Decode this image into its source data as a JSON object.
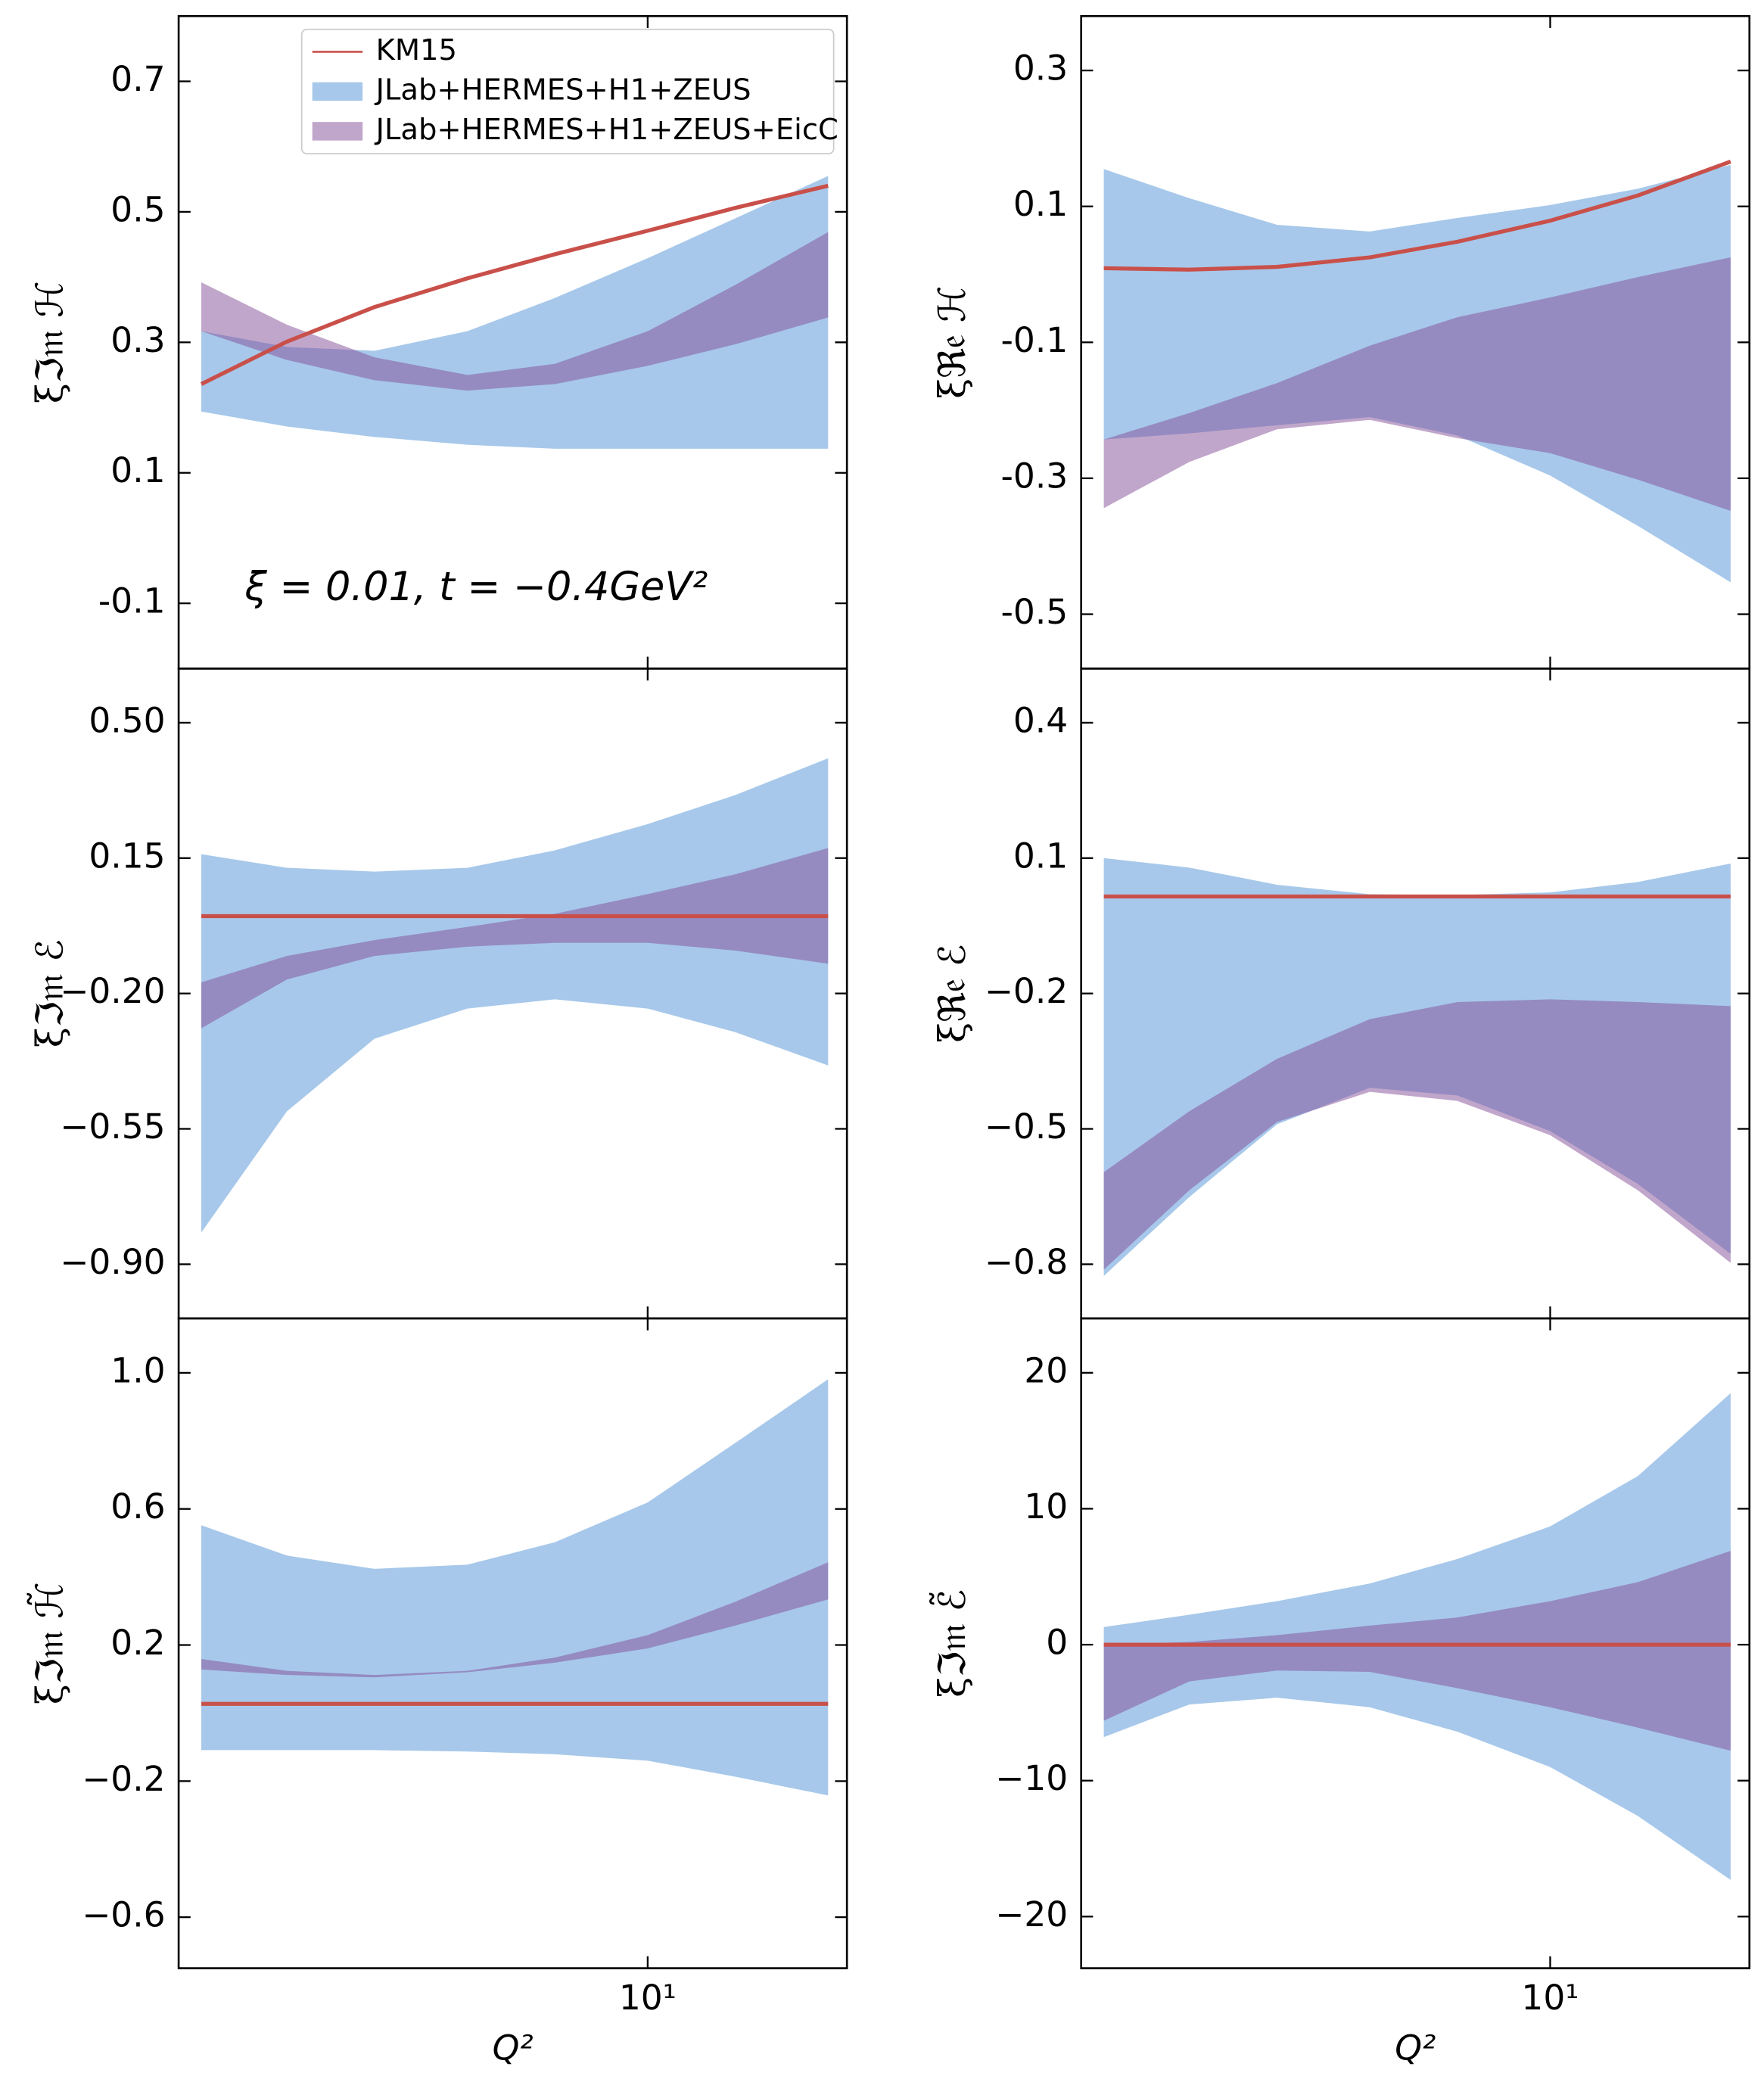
{
  "chart_data": [
    {
      "type": "band",
      "ylabel": "ξℑ𝔪 ℋ",
      "xlim": [
        1.65,
        21.5
      ],
      "xticks": [
        10
      ],
      "show_xtick_labels": false,
      "log_x": true,
      "ylim": [
        -0.2,
        0.8
      ],
      "yticks": [
        -0.1,
        0.1,
        0.3,
        0.5,
        0.7
      ],
      "legend": "upper right",
      "annotation": "ξ = 0.01, t = −0.4GeV²",
      "x": [
        1.8,
        2.5,
        3.5,
        5,
        7,
        10,
        14,
        20
      ],
      "series": [
        {
          "name": "KM15",
          "kind": "line",
          "color": "#c9504a",
          "values": [
            0.236,
            0.301,
            0.354,
            0.398,
            0.435,
            0.471,
            0.506,
            0.54
          ]
        },
        {
          "name": "JLab+HERMES+H1+ZEUS",
          "kind": "band",
          "color": "#a7c8ea",
          "upper": [
            0.317,
            0.293,
            0.287,
            0.317,
            0.368,
            0.429,
            0.49,
            0.555
          ],
          "lower": [
            0.194,
            0.171,
            0.155,
            0.143,
            0.137,
            0.137,
            0.137,
            0.137
          ]
        },
        {
          "name": "JLab+HERMES+H1+ZEUS+EicC",
          "kind": "band",
          "color": "#834e98",
          "opacity": 0.5,
          "upper": [
            0.392,
            0.327,
            0.277,
            0.25,
            0.267,
            0.317,
            0.388,
            0.469
          ],
          "lower": [
            0.317,
            0.273,
            0.242,
            0.226,
            0.236,
            0.264,
            0.297,
            0.338
          ]
        }
      ]
    },
    {
      "type": "band",
      "ylabel": "ξℜ𝔢 ℋ",
      "xlim": [
        1.65,
        21.5
      ],
      "xticks": [
        10
      ],
      "show_xtick_labels": false,
      "log_x": true,
      "ylim": [
        -0.58,
        0.38
      ],
      "yticks": [
        -0.5,
        -0.3,
        -0.1,
        0.1,
        0.3
      ],
      "x": [
        1.8,
        2.5,
        3.5,
        5,
        7,
        10,
        14,
        20
      ],
      "series": [
        {
          "kind": "line",
          "color": "#c9504a",
          "values": [
            0.009,
            0.007,
            0.011,
            0.025,
            0.048,
            0.079,
            0.116,
            0.166
          ]
        },
        {
          "kind": "band",
          "color": "#a7c8ea",
          "upper": [
            0.155,
            0.112,
            0.073,
            0.063,
            0.083,
            0.102,
            0.126,
            0.161
          ],
          "lower": [
            -0.243,
            -0.234,
            -0.222,
            -0.21,
            -0.237,
            -0.296,
            -0.37,
            -0.453
          ]
        },
        {
          "kind": "band",
          "color": "#834e98",
          "opacity": 0.5,
          "upper": [
            -0.243,
            -0.204,
            -0.16,
            -0.105,
            -0.063,
            -0.034,
            -0.004,
            0.025
          ],
          "lower": [
            -0.344,
            -0.276,
            -0.228,
            -0.214,
            -0.241,
            -0.263,
            -0.302,
            -0.348
          ]
        }
      ]
    },
    {
      "type": "band",
      "ylabel": "ξℑ𝔪 ℰ",
      "xlim": [
        1.65,
        21.5
      ],
      "xticks": [
        10
      ],
      "show_xtick_labels": false,
      "log_x": true,
      "ylim": [
        -1.04,
        0.64
      ],
      "yticks": [
        {
          "value": -0.9,
          "label": "−0.90"
        },
        {
          "value": -0.55,
          "label": "−0.55"
        },
        {
          "value": -0.2,
          "label": "−0.20"
        },
        0.15,
        {
          "value": 0.5,
          "label": "0.50"
        }
      ],
      "x": [
        1.8,
        2.5,
        3.5,
        5,
        7,
        10,
        14,
        20
      ],
      "series": [
        {
          "kind": "line",
          "color": "#c9504a",
          "values": [
            0,
            0,
            0,
            0,
            0,
            0,
            0,
            0
          ]
        },
        {
          "kind": "band",
          "color": "#a7c8ea",
          "upper": [
            0.16,
            0.125,
            0.115,
            0.125,
            0.17,
            0.238,
            0.313,
            0.408
          ],
          "lower": [
            -0.818,
            -0.505,
            -0.317,
            -0.239,
            -0.215,
            -0.239,
            -0.3,
            -0.386
          ]
        },
        {
          "kind": "band",
          "color": "#834e98",
          "opacity": 0.5,
          "upper": [
            -0.171,
            -0.103,
            -0.062,
            -0.028,
            0.006,
            0.057,
            0.108,
            0.176
          ],
          "lower": [
            -0.29,
            -0.164,
            -0.103,
            -0.079,
            -0.069,
            -0.069,
            -0.089,
            -0.123
          ]
        }
      ]
    },
    {
      "type": "band",
      "ylabel": "ξℜ𝔢 ℰ",
      "xlim": [
        1.65,
        21.5
      ],
      "xticks": [
        10
      ],
      "show_xtick_labels": false,
      "log_x": true,
      "ylim": [
        -0.92,
        0.52
      ],
      "yticks": [
        {
          "value": -0.8,
          "label": "−0.8"
        },
        {
          "value": -0.5,
          "label": "−0.5"
        },
        {
          "value": -0.2,
          "label": "−0.2"
        },
        0.1,
        0.4
      ],
      "x": [
        1.8,
        2.5,
        3.5,
        5,
        7,
        10,
        14,
        20
      ],
      "series": [
        {
          "kind": "line",
          "color": "#c9504a",
          "values": [
            0.015,
            0.015,
            0.015,
            0.015,
            0.015,
            0.015,
            0.015,
            0.015
          ]
        },
        {
          "kind": "band",
          "color": "#a7c8ea",
          "upper": [
            0.1,
            0.079,
            0.041,
            0.02,
            0.018,
            0.024,
            0.047,
            0.088
          ],
          "lower": [
            -0.826,
            -0.651,
            -0.49,
            -0.409,
            -0.426,
            -0.505,
            -0.622,
            -0.777
          ]
        },
        {
          "kind": "band",
          "color": "#834e98",
          "opacity": 0.5,
          "upper": [
            -0.596,
            -0.461,
            -0.345,
            -0.257,
            -0.219,
            -0.213,
            -0.219,
            -0.228
          ],
          "lower": [
            -0.812,
            -0.636,
            -0.485,
            -0.418,
            -0.438,
            -0.514,
            -0.636,
            -0.797
          ]
        }
      ]
    },
    {
      "type": "band",
      "ylabel": "ξℑ𝔪 ℋ̃",
      "xlabel": "Q²",
      "xlim": [
        1.65,
        21.5
      ],
      "xticks": [
        {
          "value": 10,
          "label": "10¹"
        }
      ],
      "show_xtick_labels": true,
      "log_x": true,
      "ylim": [
        -0.75,
        1.16
      ],
      "yticks": [
        {
          "value": -0.6,
          "label": "−0.6"
        },
        {
          "value": -0.2,
          "label": "−0.2"
        },
        0.2,
        0.6,
        {
          "value": 1.0,
          "label": "1.0"
        }
      ],
      "x": [
        1.8,
        2.5,
        3.5,
        5,
        7,
        10,
        14,
        20
      ],
      "series": [
        {
          "kind": "line",
          "color": "#c9504a",
          "values": [
            0.027,
            0.027,
            0.027,
            0.027,
            0.027,
            0.027,
            0.027,
            0.027
          ]
        },
        {
          "kind": "band",
          "color": "#a7c8ea",
          "upper": [
            0.552,
            0.463,
            0.424,
            0.436,
            0.502,
            0.619,
            0.794,
            0.981
          ],
          "lower": [
            -0.109,
            -0.109,
            -0.109,
            -0.113,
            -0.121,
            -0.14,
            -0.187,
            -0.242
          ]
        },
        {
          "kind": "band",
          "color": "#834e98",
          "opacity": 0.5,
          "upper": [
            0.159,
            0.124,
            0.112,
            0.124,
            0.163,
            0.229,
            0.327,
            0.443
          ],
          "lower": [
            0.128,
            0.112,
            0.105,
            0.12,
            0.148,
            0.19,
            0.257,
            0.334
          ]
        }
      ]
    },
    {
      "type": "band",
      "ylabel": "ξℑ𝔪 ℰ̃",
      "xlabel": "Q²",
      "xlim": [
        1.65,
        21.5
      ],
      "xticks": [
        {
          "value": 10,
          "label": "10¹"
        }
      ],
      "show_xtick_labels": true,
      "log_x": true,
      "ylim": [
        -23.8,
        24
      ],
      "yticks": [
        {
          "value": -20,
          "label": "−20"
        },
        {
          "value": -10,
          "label": "−10"
        },
        0,
        10,
        20
      ],
      "x": [
        1.8,
        2.5,
        3.5,
        5,
        7,
        10,
        14,
        20
      ],
      "series": [
        {
          "kind": "line",
          "color": "#c9504a",
          "values": [
            0,
            0,
            0,
            0,
            0,
            0,
            0,
            0
          ]
        },
        {
          "kind": "band",
          "color": "#a7c8ea",
          "upper": [
            1.3,
            2.2,
            3.2,
            4.5,
            6.3,
            8.7,
            12.4,
            18.5
          ],
          "lower": [
            -6.8,
            -4.4,
            -3.9,
            -4.6,
            -6.4,
            -9.0,
            -12.6,
            -17.3
          ]
        },
        {
          "kind": "band",
          "color": "#834e98",
          "opacity": 0.5,
          "upper": [
            0,
            0.2,
            0.7,
            1.4,
            2.0,
            3.2,
            4.6,
            6.9
          ],
          "lower": [
            -5.6,
            -2.7,
            -1.9,
            -2.0,
            -3.2,
            -4.6,
            -6.1,
            -7.8
          ]
        }
      ]
    }
  ]
}
